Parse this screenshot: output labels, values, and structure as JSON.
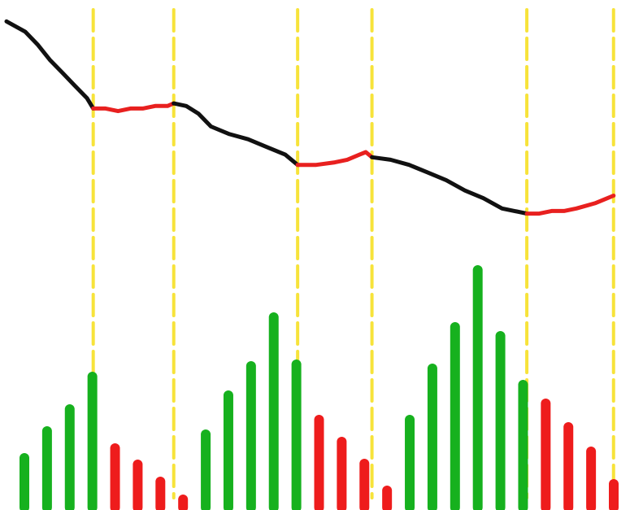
{
  "chart_data": {
    "type": "line",
    "title": "",
    "xlabel": "",
    "ylabel": "",
    "grid": false,
    "legend": "none",
    "colors": {
      "line_down": "#111111",
      "line_up": "#e8201f",
      "bar_green": "#16b11e",
      "bar_red": "#ee1c1c",
      "divider": "#f7e33a",
      "background": "#ffffff"
    },
    "price_line": {
      "x_range": [
        0,
        100
      ],
      "y_range": [
        0,
        100
      ],
      "segments": [
        {
          "trend": "down",
          "color": "line_down",
          "points": [
            [
              0,
              98
            ],
            [
              3,
              94
            ],
            [
              5,
              89
            ],
            [
              7,
              83
            ],
            [
              9,
              78
            ],
            [
              11,
              73
            ],
            [
              13,
              68
            ],
            [
              14,
              64
            ]
          ]
        },
        {
          "trend": "up",
          "color": "line_up",
          "points": [
            [
              14,
              64
            ],
            [
              16,
              64
            ],
            [
              18,
              63
            ],
            [
              20,
              64
            ],
            [
              22,
              64
            ],
            [
              24,
              65
            ],
            [
              26,
              65
            ],
            [
              27,
              66
            ]
          ]
        },
        {
          "trend": "down",
          "color": "line_down",
          "points": [
            [
              27,
              66
            ],
            [
              29,
              65
            ],
            [
              31,
              62
            ],
            [
              33,
              57
            ],
            [
              36,
              54
            ],
            [
              39,
              52
            ],
            [
              42,
              49
            ],
            [
              45,
              46
            ],
            [
              47,
              42
            ]
          ]
        },
        {
          "trend": "up",
          "color": "line_up",
          "points": [
            [
              47,
              42
            ],
            [
              50,
              42
            ],
            [
              53,
              43
            ],
            [
              55,
              44
            ],
            [
              57,
              46
            ],
            [
              58,
              47
            ],
            [
              59,
              45
            ]
          ]
        },
        {
          "trend": "down",
          "color": "line_down",
          "points": [
            [
              59,
              45
            ],
            [
              62,
              44
            ],
            [
              65,
              42
            ],
            [
              68,
              39
            ],
            [
              71,
              36
            ],
            [
              74,
              32
            ],
            [
              77,
              29
            ],
            [
              80,
              25
            ],
            [
              82,
              24
            ],
            [
              84,
              23
            ]
          ]
        },
        {
          "trend": "up",
          "color": "line_up",
          "points": [
            [
              84,
              23
            ],
            [
              86,
              23
            ],
            [
              88,
              24
            ],
            [
              90,
              24
            ],
            [
              92,
              25
            ],
            [
              95,
              27
            ],
            [
              97,
              29
            ],
            [
              98,
              30
            ]
          ]
        }
      ]
    },
    "dividers": [
      14,
      27,
      47,
      59,
      84,
      98
    ],
    "volume": {
      "y_range": [
        0,
        300
      ],
      "bars": [
        {
          "color": "green",
          "value": 65
        },
        {
          "color": "green",
          "value": 98
        },
        {
          "color": "green",
          "value": 125
        },
        {
          "color": "green",
          "value": 165
        },
        {
          "color": "red",
          "value": 77
        },
        {
          "color": "red",
          "value": 57
        },
        {
          "color": "red",
          "value": 36
        },
        {
          "color": "red",
          "value": 14
        },
        {
          "color": "green",
          "value": 94
        },
        {
          "color": "green",
          "value": 142
        },
        {
          "color": "green",
          "value": 178
        },
        {
          "color": "green",
          "value": 238
        },
        {
          "color": "green",
          "value": 180
        },
        {
          "color": "red",
          "value": 112
        },
        {
          "color": "red",
          "value": 85
        },
        {
          "color": "red",
          "value": 58
        },
        {
          "color": "red",
          "value": 25
        },
        {
          "color": "green",
          "value": 112
        },
        {
          "color": "green",
          "value": 175
        },
        {
          "color": "green",
          "value": 226
        },
        {
          "color": "green",
          "value": 296
        },
        {
          "color": "green",
          "value": 215
        },
        {
          "color": "green",
          "value": 155
        },
        {
          "color": "red",
          "value": 132
        },
        {
          "color": "red",
          "value": 103
        },
        {
          "color": "red",
          "value": 73
        },
        {
          "color": "red",
          "value": 33
        }
      ]
    }
  }
}
